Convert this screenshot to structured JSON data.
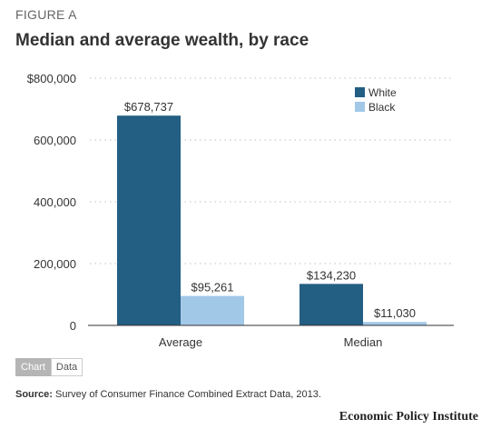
{
  "figure_label": "FIGURE A",
  "title": "Median and average wealth, by race",
  "tabs": {
    "chart": "Chart",
    "data": "Data"
  },
  "source": {
    "label": "Source:",
    "text": "Survey of Consumer Finance Combined Extract Data, 2013."
  },
  "brand": "Economic Policy Institute",
  "colors": {
    "White": "#235e83",
    "Black": "#a2c8e8",
    "grid": "#cccccc",
    "axis": "#333333"
  },
  "chart_data": {
    "type": "bar",
    "title": "Median and average wealth, by race",
    "xlabel": "",
    "ylabel": "",
    "categories": [
      "Average",
      "Median"
    ],
    "series": [
      {
        "name": "White",
        "values": [
          678737,
          134230
        ],
        "labels": [
          "$678,737",
          "$134,230"
        ]
      },
      {
        "name": "Black",
        "values": [
          95261,
          11030
        ],
        "labels": [
          "$95,261",
          "$11,030"
        ]
      }
    ],
    "ylim": [
      0,
      800000
    ],
    "yticks": [
      0,
      200000,
      400000,
      600000,
      800000
    ],
    "ytick_labels": [
      "0",
      "200,000",
      "400,000",
      "600,000",
      "$800,000"
    ],
    "grid": "dotted horizontal",
    "legend": "top-right"
  }
}
